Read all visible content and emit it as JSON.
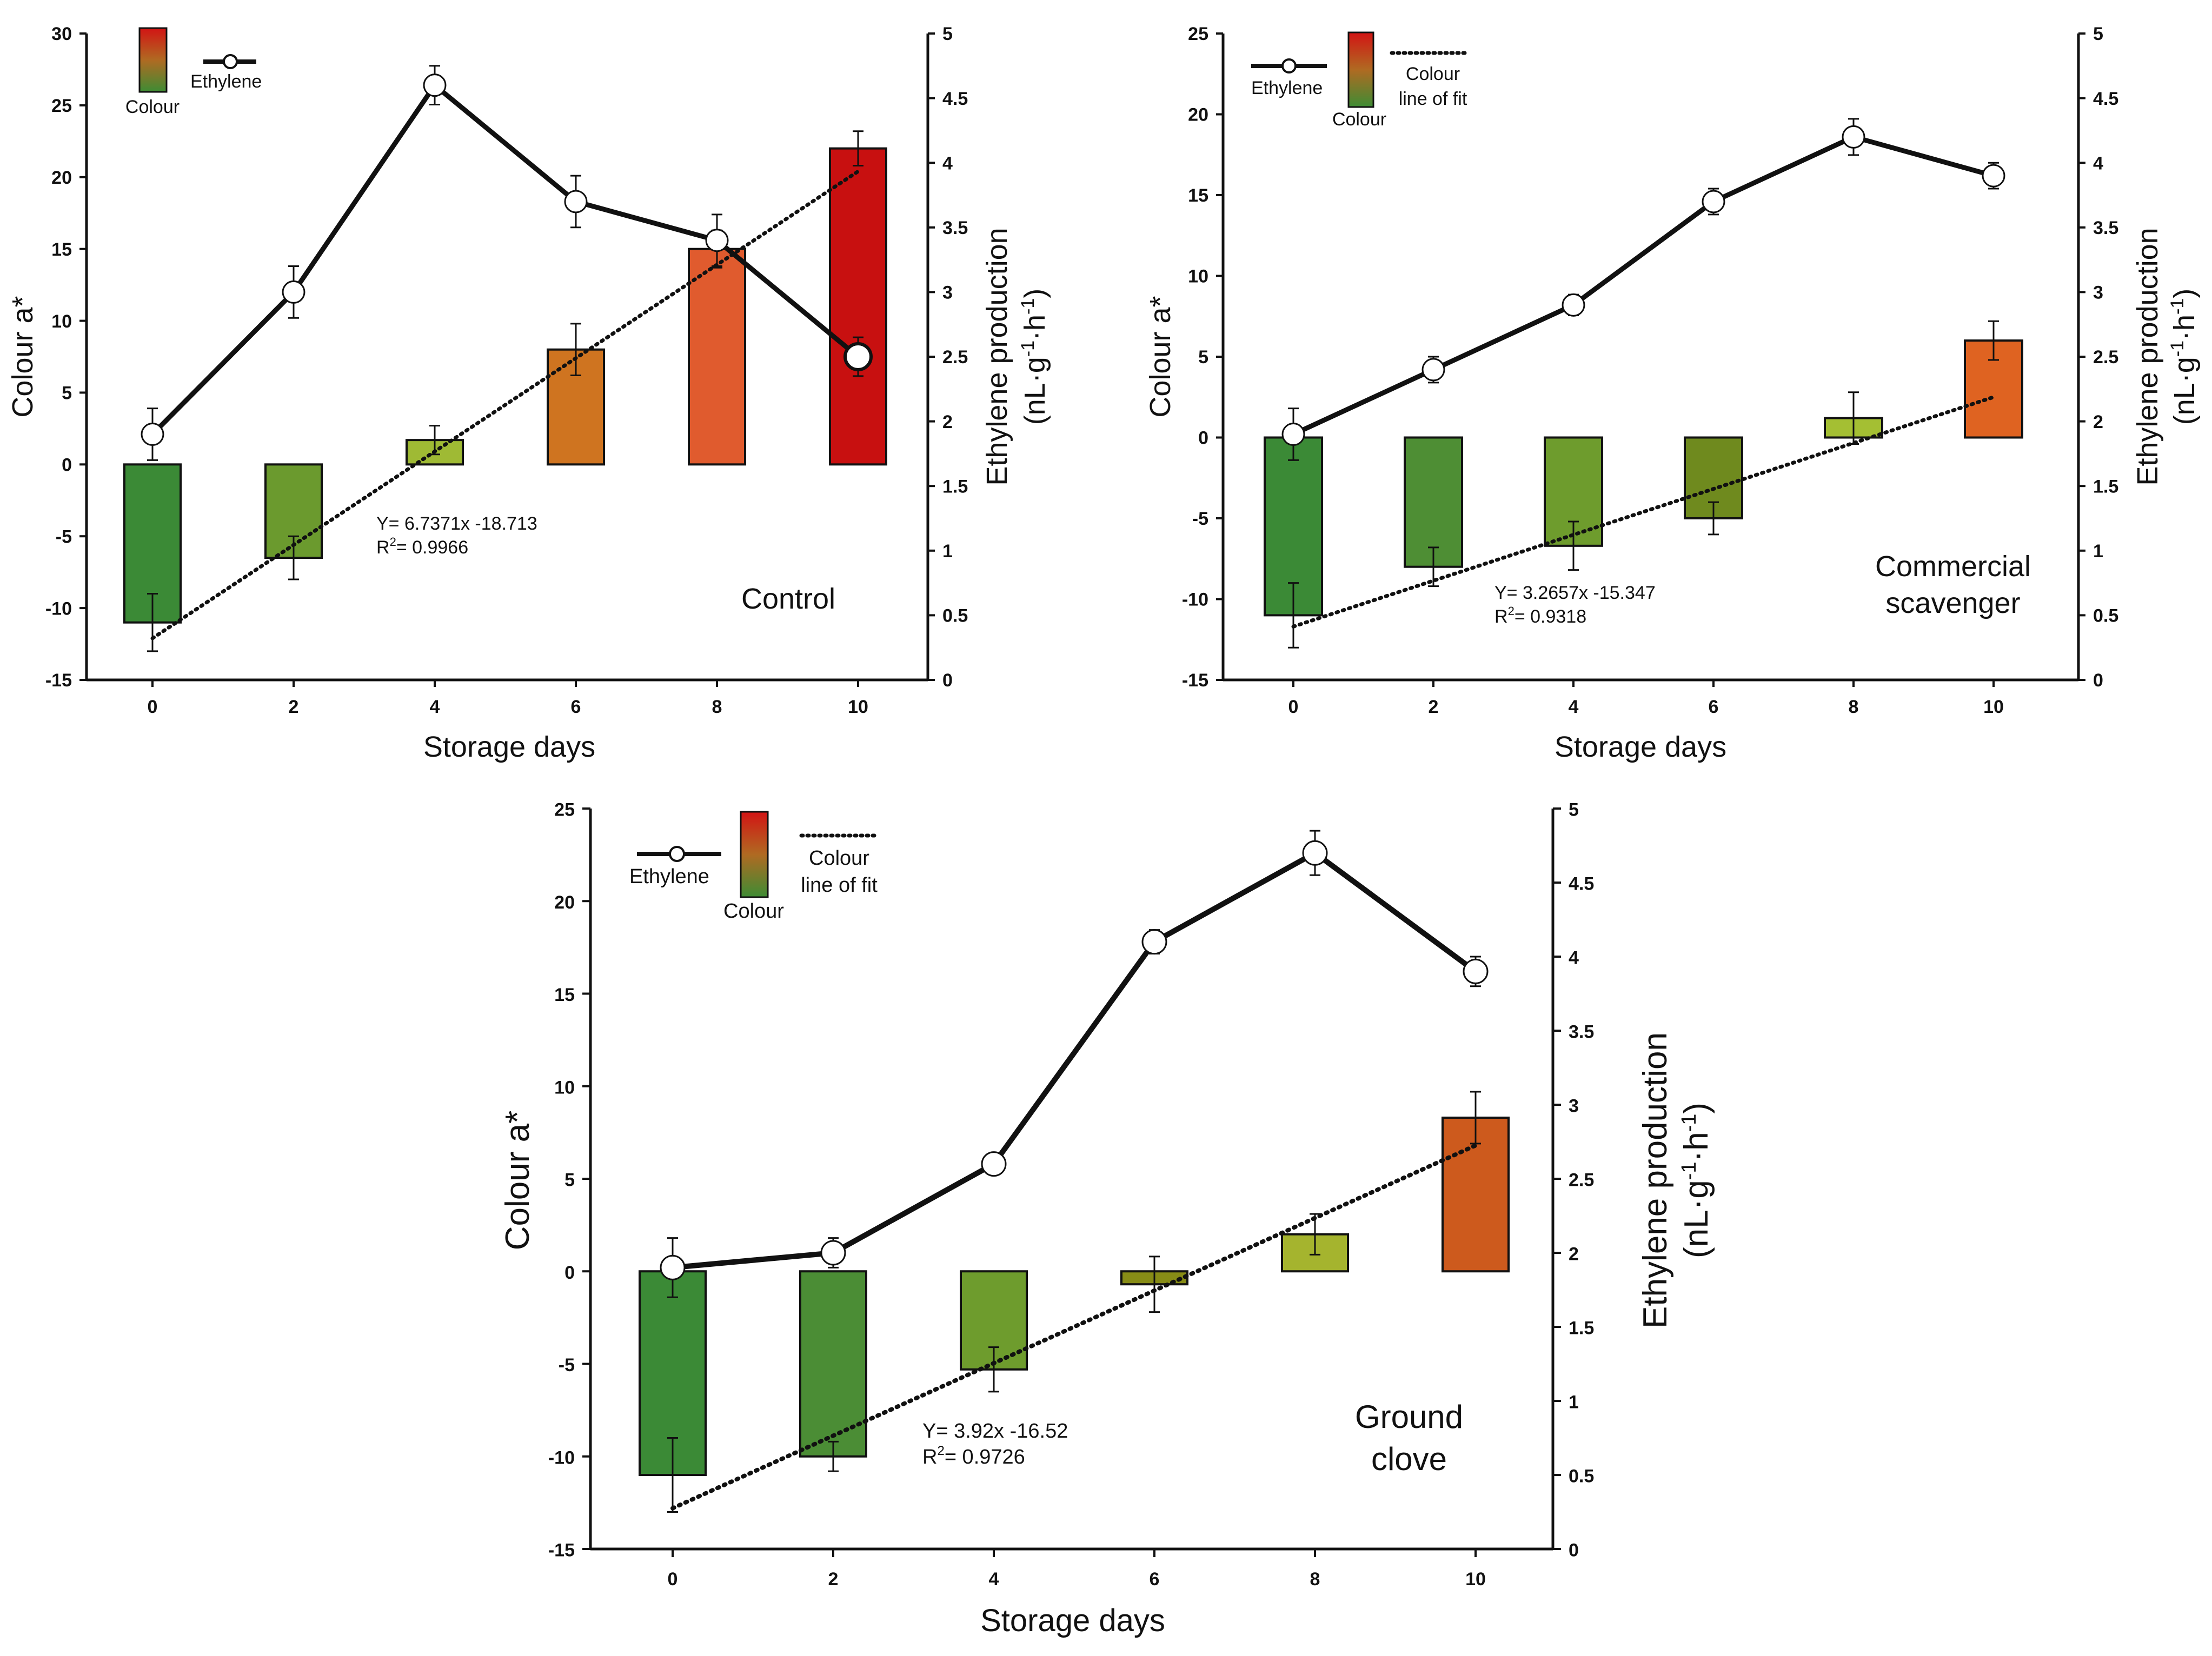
{
  "chart_data": [
    {
      "type": "bar",
      "title": "Control",
      "xlabel": "Storage days",
      "ylabel": "Colour a*",
      "y2label_line1": "Ethylene production",
      "y2label_line2_base": "(nL·g",
      "y2label_sup1": "-1",
      "y2label_mid": "·h",
      "y2label_sup2": "-1",
      "y2label_end": ")",
      "ylim": [
        -15,
        30
      ],
      "y_ticks": [
        "-15",
        "-10",
        "-5",
        "0",
        "5",
        "10",
        "15",
        "20",
        "25",
        "30"
      ],
      "y2lim": [
        0,
        5
      ],
      "y2_ticks": [
        "0",
        "0.5",
        "1",
        "1.5",
        "2",
        "2.5",
        "3",
        "3.5",
        "4",
        "4.5",
        "5"
      ],
      "categories": [
        "0",
        "2",
        "4",
        "6",
        "8",
        "10"
      ],
      "series": [
        {
          "name": "Colour",
          "kind": "bar",
          "axis": "left",
          "values": [
            -11,
            -6.5,
            1.7,
            8,
            15,
            22
          ],
          "errors": [
            2,
            1.5,
            1,
            1.8,
            1.3,
            1.2
          ],
          "colors": [
            "#3b8a36",
            "#6b9a2e",
            "#9fba34",
            "#cf7420",
            "#e05b2e",
            "#c81010"
          ]
        },
        {
          "name": "Ethylene",
          "kind": "line",
          "axis": "right",
          "values": [
            1.9,
            3.0,
            4.6,
            3.7,
            3.4,
            2.5
          ],
          "errors": [
            0.2,
            0.2,
            0.15,
            0.2,
            0.2,
            0.15
          ],
          "last_marker_filled": true
        },
        {
          "name": "Colour line of fit",
          "kind": "fit",
          "axis": "left",
          "x": [
            0,
            10
          ],
          "values": [
            -12.1,
            20.4
          ]
        }
      ],
      "equation": "Y= 6.7371x -18.713",
      "r2_prefix": "R",
      "r2_sup": "2",
      "r2_value": "= 0.9966",
      "legend": {
        "colour_label": "Colour",
        "ethylene_label": "Ethylene",
        "fit_line1": "",
        "fit_line2": ""
      }
    },
    {
      "type": "bar",
      "title": "Commercial scavenger",
      "title_line1": "Commercial",
      "title_line2": "scavenger",
      "xlabel": "Storage days",
      "ylabel": "Colour a*",
      "y2label_line1": "Ethylene production",
      "y2label_line2_base": "(nL·g",
      "y2label_sup1": "-1",
      "y2label_mid": "·h",
      "y2label_sup2": "-1",
      "y2label_end": ")",
      "ylim": [
        -15,
        25
      ],
      "y_ticks": [
        "-15",
        "-10",
        "-5",
        "0",
        "5",
        "10",
        "15",
        "20",
        "25"
      ],
      "y2lim": [
        0,
        5
      ],
      "y2_ticks": [
        "0",
        "0.5",
        "1",
        "1.5",
        "2",
        "2.5",
        "3",
        "3.5",
        "4",
        "4.5",
        "5"
      ],
      "categories": [
        "0",
        "2",
        "4",
        "6",
        "8",
        "10"
      ],
      "series": [
        {
          "name": "Colour",
          "kind": "bar",
          "axis": "left",
          "values": [
            -11,
            -8,
            -6.7,
            -5,
            1.2,
            6
          ],
          "errors": [
            2,
            1.2,
            1.5,
            1,
            1.6,
            1.2
          ],
          "colors": [
            "#3b8a36",
            "#4e8e34",
            "#6e9c2d",
            "#6f8a1e",
            "#a4bf33",
            "#df6321"
          ]
        },
        {
          "name": "Ethylene",
          "kind": "line",
          "axis": "right",
          "values": [
            1.9,
            2.4,
            2.9,
            3.7,
            4.2,
            3.9
          ],
          "errors": [
            0.2,
            0.1,
            0.08,
            0.1,
            0.14,
            0.1
          ],
          "last_marker_filled": false
        },
        {
          "name": "Colour line of fit",
          "kind": "fit",
          "axis": "left",
          "x": [
            0,
            10
          ],
          "values": [
            -11.7,
            2.5
          ]
        }
      ],
      "equation": "Y= 3.2657x -15.347",
      "r2_prefix": "R",
      "r2_sup": "2",
      "r2_value": "= 0.9318",
      "legend": {
        "colour_label": "Colour",
        "ethylene_label": "Ethylene",
        "fit_line1": "Colour",
        "fit_line2": "line of fit"
      }
    },
    {
      "type": "bar",
      "title": "Ground clove",
      "title_line1": "Ground",
      "title_line2": "clove",
      "xlabel": "Storage days",
      "ylabel": "Colour a*",
      "y2label_line1": "Ethylene production",
      "y2label_line2_base": "(nL·g",
      "y2label_sup1": "-1",
      "y2label_mid": "·h",
      "y2label_sup2": "-1",
      "y2label_end": ")",
      "ylim": [
        -15,
        25
      ],
      "y_ticks": [
        "-15",
        "-10",
        "-5",
        "0",
        "5",
        "10",
        "15",
        "20",
        "25"
      ],
      "y2lim": [
        0,
        5
      ],
      "y2_ticks": [
        "0",
        "0.5",
        "1",
        "1.5",
        "2",
        "2.5",
        "3",
        "3.5",
        "4",
        "4.5",
        "5"
      ],
      "categories": [
        "0",
        "2",
        "4",
        "6",
        "8",
        "10"
      ],
      "series": [
        {
          "name": "Colour",
          "kind": "bar",
          "axis": "left",
          "values": [
            -11,
            -10,
            -5.3,
            -0.7,
            2,
            8.3
          ],
          "errors": [
            2,
            0.8,
            1.2,
            1.5,
            1.1,
            1.4
          ],
          "colors": [
            "#3b8a36",
            "#4b8d35",
            "#6e9c2d",
            "#878c16",
            "#a5b42e",
            "#cd5a1d"
          ]
        },
        {
          "name": "Ethylene",
          "kind": "line",
          "axis": "right",
          "values": [
            1.9,
            2.0,
            2.6,
            4.1,
            4.7,
            3.9
          ],
          "errors": [
            0.2,
            0.1,
            0.06,
            0.08,
            0.15,
            0.1
          ],
          "last_marker_filled": false
        },
        {
          "name": "Colour line of fit",
          "kind": "fit",
          "axis": "left",
          "x": [
            0,
            10
          ],
          "values": [
            -12.8,
            6.8
          ]
        }
      ],
      "equation": "Y= 3.92x -16.52",
      "r2_prefix": "R",
      "r2_sup": "2",
      "r2_value": "= 0.9726",
      "legend": {
        "colour_label": "Colour",
        "ethylene_label": "Ethylene",
        "fit_line1": "Colour",
        "fit_line2": "line of fit"
      }
    }
  ]
}
